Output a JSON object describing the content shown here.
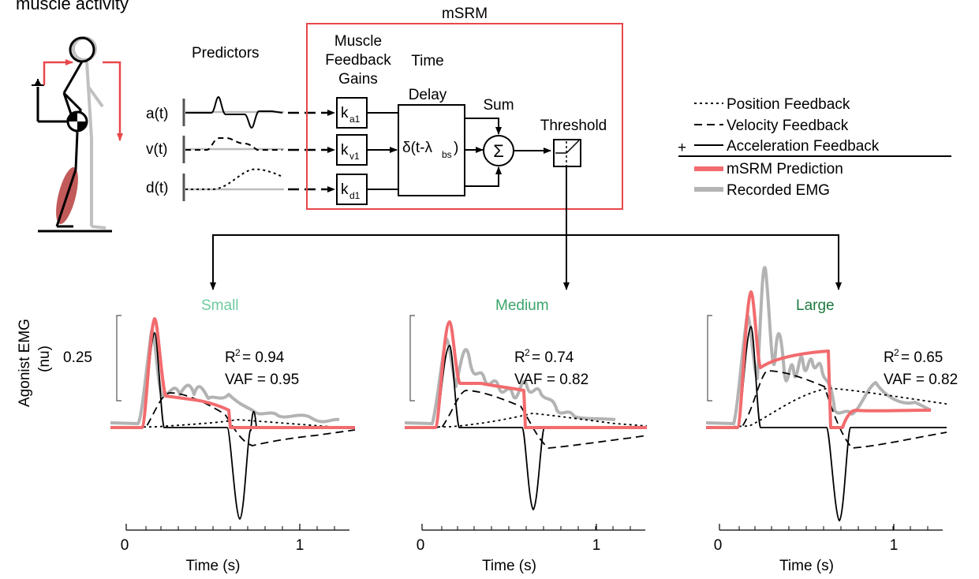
{
  "header": {
    "title_partial": "muscle activity"
  },
  "diagram": {
    "predictors_title": "Predictors",
    "msrm_title": "mSRM",
    "signals": [
      "a(t)",
      "v(t)",
      "d(t)"
    ],
    "gains_title": [
      "Muscle",
      "Feedback",
      "Gains"
    ],
    "gains": [
      {
        "main": "k",
        "sub": "a1"
      },
      {
        "main": "k",
        "sub": "v1"
      },
      {
        "main": "k",
        "sub": "d1"
      }
    ],
    "delay_title": [
      "Time",
      "Delay"
    ],
    "delay_label": {
      "main": "δ(t-λ",
      "sub": "bs",
      "close": ")"
    },
    "sum_title": "Sum",
    "sum_symbol": "Σ",
    "threshold_title": "Threshold",
    "plus_sign": "+",
    "colors": {
      "msrm_box": "#e8474a",
      "prediction": "#f26b6e",
      "recorded": "#b3b3b3",
      "skeleton_gray": "#c0c0c0",
      "muscle": "#c25a5a"
    }
  },
  "legend": {
    "items": [
      {
        "style": "dotted",
        "label": "Position Feedback"
      },
      {
        "style": "dashed",
        "label": "Velocity Feedback"
      },
      {
        "style": "solid",
        "label": "Acceleration Feedback"
      },
      {
        "style": "prediction",
        "label": "mSRM Prediction"
      },
      {
        "style": "recorded",
        "label": "Recorded EMG"
      }
    ]
  },
  "y_axis": {
    "label_line1": "Agonist EMG",
    "label_line2": "(nu)",
    "scale_bar_value": "0.25"
  },
  "panels": [
    {
      "title": "Small",
      "title_color": "#6ecba0",
      "r2_label": "R",
      "r2_value": "= 0.94",
      "vaf": "VAF = 0.95",
      "x_ticks": [
        "0",
        "1"
      ],
      "x_label": "Time (s)"
    },
    {
      "title": "Medium",
      "title_color": "#3aa56a",
      "r2_label": "R",
      "r2_value": "= 0.74",
      "vaf": "VAF = 0.82",
      "x_ticks": [
        "0",
        "1"
      ],
      "x_label": "Time (s)"
    },
    {
      "title": "Large",
      "title_color": "#1d7a3f",
      "r2_label": "R",
      "r2_value": "= 0.65",
      "vaf": "VAF = 0.82",
      "x_ticks": [
        "0",
        "1"
      ],
      "x_label": "Time (s)"
    }
  ],
  "superscript": "2"
}
